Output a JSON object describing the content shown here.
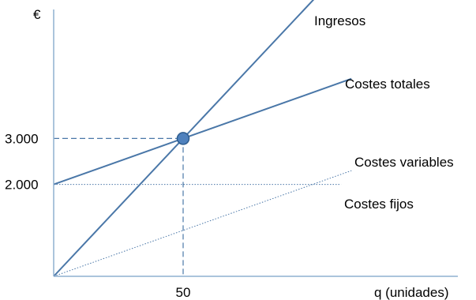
{
  "chart_data": {
    "type": "line",
    "title": "",
    "ylabel": "€",
    "xlabel": "q (unidades)",
    "xlim": [
      0,
      115
    ],
    "ylim": [
      0,
      5500
    ],
    "x_ticks": [
      {
        "value": 50,
        "label": "50"
      }
    ],
    "y_ticks": [
      {
        "value": 2000,
        "label": "2.000"
      },
      {
        "value": 3000,
        "label": "3.000"
      }
    ],
    "series": [
      {
        "name": "Ingresos",
        "x": [
          0,
          103
        ],
        "y": [
          0,
          6180
        ],
        "style": "solid",
        "color": "#4a77a8"
      },
      {
        "name": "Costes totales",
        "x": [
          0,
          115
        ],
        "y": [
          2000,
          4300
        ],
        "style": "solid",
        "color": "#4a77a8"
      },
      {
        "name": "Costes variables",
        "x": [
          0,
          115
        ],
        "y": [
          0,
          2300
        ],
        "style": "dotted",
        "color": "#4a77a8"
      },
      {
        "name": "Costes fijos",
        "x": [
          0,
          111
        ],
        "y": [
          2000,
          2000
        ],
        "style": "dotted",
        "color": "#4a77a8"
      }
    ],
    "break_even": {
      "x": 50,
      "y": 3000,
      "guides": "dashed",
      "point_color": "#4f81bd"
    },
    "grid": false,
    "legend": "inline labels"
  }
}
